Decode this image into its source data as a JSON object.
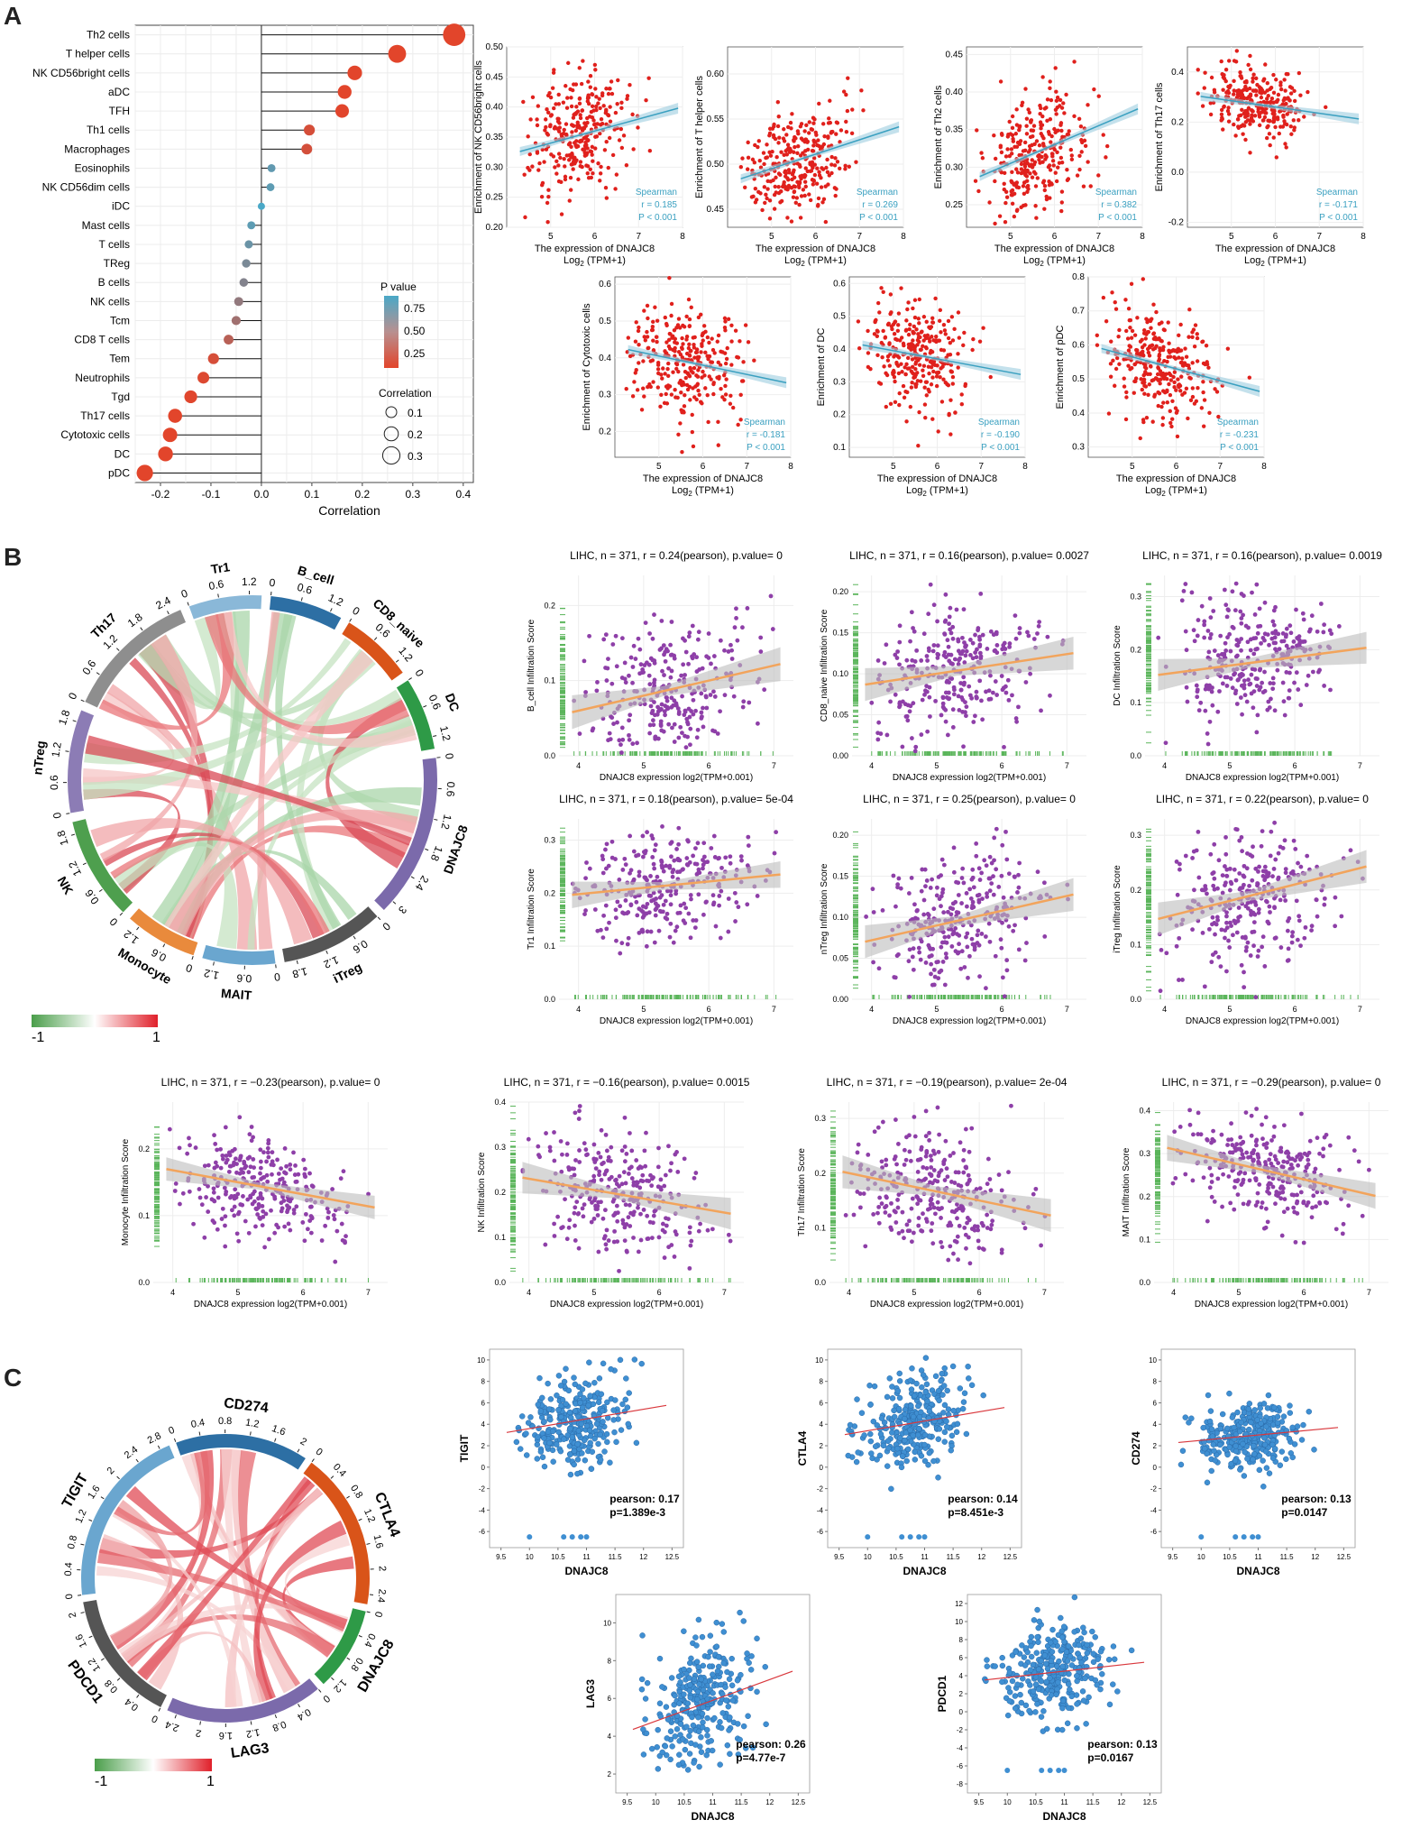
{
  "panels": {
    "A": "A",
    "B": "B",
    "C": "C"
  },
  "chart_data": [
    {
      "id": "lollipop",
      "type": "lollipop",
      "xlabel": "Correlation",
      "xlim": [
        -0.25,
        0.42
      ],
      "xticks": [
        -0.2,
        -0.1,
        0.0,
        0.1,
        0.2,
        0.3,
        0.4
      ],
      "xtick_labels": [
        "-0.2",
        "-0.1",
        "0.0",
        "0.1",
        "0.2",
        "0.3",
        "0.4"
      ],
      "categories": [
        "Th2 cells",
        "T helper cells",
        "NK CD56bright cells",
        "aDC",
        "TFH",
        "Th1 cells",
        "Macrophages",
        "Eosinophils",
        "NK CD56dim cells",
        "iDC",
        "Mast cells",
        "T cells",
        "TReg",
        "B cells",
        "NK cells",
        "Tcm",
        "CD8 T cells",
        "Tem",
        "Neutrophils",
        "Tgd",
        "Th17 cells",
        "Cytotoxic cells",
        "DC",
        "pDC"
      ],
      "values": [
        0.382,
        0.269,
        0.185,
        0.165,
        0.16,
        0.095,
        0.09,
        0.02,
        0.018,
        0.0,
        -0.02,
        -0.025,
        -0.03,
        -0.035,
        -0.045,
        -0.05,
        -0.065,
        -0.095,
        -0.115,
        -0.14,
        -0.171,
        -0.181,
        -0.19,
        -0.231
      ],
      "pvalues": [
        0.001,
        0.001,
        0.001,
        0.002,
        0.003,
        0.07,
        0.08,
        0.68,
        0.7,
        0.95,
        0.7,
        0.63,
        0.55,
        0.5,
        0.42,
        0.35,
        0.22,
        0.07,
        0.03,
        0.01,
        0.001,
        0.001,
        0.001,
        0.001
      ],
      "legend_p": {
        "title": "P value",
        "ticks": [
          "0.75",
          "0.50",
          "0.25"
        ]
      },
      "legend_size": {
        "title": "Correlation",
        "items": [
          "0.1",
          "0.2",
          "0.3"
        ]
      }
    },
    {
      "id": "enrich",
      "type": "scatter",
      "xlabel1": "The expression of DNAJC8",
      "xlabel2": "Log",
      "xlabel_sub": "2",
      "xlabel3": " (TPM+1)",
      "method": "Spearman",
      "plots": [
        {
          "ylabel": "Enrichment of NK CD56bright cells",
          "yticks": [
            "0.50",
            "0.45",
            "0.40",
            "0.35",
            "0.30",
            "0.25",
            "0.20"
          ],
          "ylim": [
            0.2,
            0.5
          ],
          "slope": 0.02,
          "intercept": 0.24,
          "spread": 0.05,
          "r": "r = 0.185",
          "p": "P < 0.001"
        },
        {
          "ylabel": "Enrichment of T helper cells",
          "yticks": [
            "0.60",
            "0.55",
            "0.50",
            "0.45"
          ],
          "ylim": [
            0.43,
            0.63
          ],
          "slope": 0.016,
          "intercept": 0.415,
          "spread": 0.03,
          "r": "r = 0.269",
          "p": "P < 0.001"
        },
        {
          "ylabel": "Enrichment of Th2 cells",
          "yticks": [
            "0.45",
            "0.40",
            "0.35",
            "0.30",
            "0.25"
          ],
          "ylim": [
            0.22,
            0.46
          ],
          "slope": 0.025,
          "intercept": 0.18,
          "spread": 0.04,
          "r": "r = 0.382",
          "p": "P < 0.001"
        },
        {
          "ylabel": "Enrichment of Th17 cells",
          "yticks": [
            "0.4",
            "0.2",
            "0.0",
            "-0.2"
          ],
          "ylim": [
            -0.22,
            0.5
          ],
          "slope": -0.025,
          "intercept": 0.41,
          "spread": 0.07,
          "r": "r = -0.171",
          "p": "P < 0.001"
        },
        {
          "ylabel": "Enrichment of Cytotoxic cells",
          "yticks": [
            "0.6",
            "0.5",
            "0.4",
            "0.3",
            "0.2"
          ],
          "ylim": [
            0.13,
            0.62
          ],
          "slope": -0.025,
          "intercept": 0.53,
          "spread": 0.08,
          "r": "r = -0.181",
          "p": "P < 0.001"
        },
        {
          "ylabel": "Enrichment of DC",
          "yticks": [
            "0.6",
            "0.5",
            "0.4",
            "0.3",
            "0.2",
            "0.1"
          ],
          "ylim": [
            0.07,
            0.62
          ],
          "slope": -0.025,
          "intercept": 0.52,
          "spread": 0.08,
          "r": "r = -0.190",
          "p": "P < 0.001"
        },
        {
          "ylabel": "Enrichment of pDC",
          "yticks": [
            "0.8",
            "0.7",
            "0.6",
            "0.5",
            "0.4",
            "0.3"
          ],
          "ylim": [
            0.27,
            0.8
          ],
          "slope": -0.035,
          "intercept": 0.74,
          "spread": 0.08,
          "r": "r = -0.231",
          "p": "P < 0.001"
        }
      ],
      "xticks": [
        "5",
        "6",
        "7",
        "8"
      ],
      "xlim": [
        4,
        8
      ]
    },
    {
      "id": "chordB",
      "type": "chord",
      "segments": [
        {
          "name": "Tr1",
          "color": "#8ab8d8",
          "ticks": [
            "0",
            "0.6",
            "1.2"
          ]
        },
        {
          "name": "B_cell",
          "color": "#2d6fa4",
          "ticks": [
            "0",
            "0.6",
            "1.2"
          ]
        },
        {
          "name": "CD8_naive",
          "color": "#d95419",
          "ticks": [
            "0",
            "0.6",
            "1.2"
          ]
        },
        {
          "name": "DC",
          "color": "#2e9a47",
          "ticks": [
            "0",
            "0.6",
            "1.2"
          ]
        },
        {
          "name": "DNAJC8",
          "color": "#7b6aab",
          "ticks": [
            "0",
            "0.6",
            "1.2",
            "1.8",
            "2.4",
            "3"
          ]
        },
        {
          "name": "iTreg",
          "color": "#555555",
          "ticks": [
            "0",
            "0.6",
            "1.2",
            "1.8"
          ]
        },
        {
          "name": "MAIT",
          "color": "#6aa6cf",
          "ticks": [
            "0",
            "0.6",
            "1.2"
          ]
        },
        {
          "name": "Monocyte",
          "color": "#e98a3c",
          "ticks": [
            "0",
            "0.6",
            "1.2"
          ]
        },
        {
          "name": "NK",
          "color": "#4e9f4e",
          "ticks": [
            "0",
            "0.6",
            "1.2",
            "1.8"
          ]
        },
        {
          "name": "nTreg",
          "color": "#8c7cb5",
          "ticks": [
            "0",
            "0.6",
            "1.2",
            "1.8"
          ]
        },
        {
          "name": "Th17",
          "color": "#8e8e8e",
          "ticks": [
            "0",
            "0.6",
            "1.2",
            "1.8",
            "2.4"
          ]
        }
      ],
      "colorbar": {
        "min": "-1",
        "max": "1"
      }
    },
    {
      "id": "timerB",
      "type": "scatter",
      "xlabel": "DNAJC8 expression log2(TPM+0.001)",
      "xticks": [
        "4",
        "5",
        "6",
        "7"
      ],
      "plots": [
        {
          "title": "LIHC, n = 371, r = 0.24(pearson), p.value= 0",
          "ylabel": "B_cell Infiltration Score",
          "yticks": [
            "0.2",
            "0.1",
            "0.0"
          ],
          "ymax": 0.24,
          "slope": 0.02,
          "intercept": -0.02,
          "spread": 0.045
        },
        {
          "title": "LIHC, n = 371, r = 0.16(pearson), p.value= 0.0027",
          "ylabel": "CD8_naive Infiltration Score",
          "yticks": [
            "0.20",
            "0.15",
            "0.10",
            "0.05",
            "0.00"
          ],
          "ymax": 0.22,
          "slope": 0.012,
          "intercept": 0.04,
          "spread": 0.04
        },
        {
          "title": "LIHC, n = 371, r = 0.16(pearson), p.value= 0.0019",
          "ylabel": "DC Infiltration Score",
          "yticks": [
            "0.3",
            "0.2",
            "0.1",
            "0.0"
          ],
          "ymax": 0.34,
          "slope": 0.016,
          "intercept": 0.09,
          "spread": 0.06
        },
        {
          "title": "LIHC, n = 371, r = 0.18(pearson), p.value= 5e-04",
          "ylabel": "Tr1 Infiltration Score",
          "yticks": [
            "0.3",
            "0.2",
            "0.1",
            "0.0"
          ],
          "ymax": 0.34,
          "slope": 0.012,
          "intercept": 0.15,
          "spread": 0.05
        },
        {
          "title": "LIHC, n = 371, r = 0.25(pearson), p.value= 0",
          "ylabel": "nTreg Infiltration Score",
          "yticks": [
            "0.20",
            "0.15",
            "0.10",
            "0.05",
            "0.00"
          ],
          "ymax": 0.22,
          "slope": 0.018,
          "intercept": 0.0,
          "spread": 0.04
        },
        {
          "title": "LIHC, n = 371, r = 0.22(pearson), p.value= 0",
          "ylabel": "iTreg Infiltration Score",
          "yticks": [
            "0.3",
            "0.2",
            "0.1",
            "0.0"
          ],
          "ymax": 0.33,
          "slope": 0.03,
          "intercept": 0.03,
          "spread": 0.06
        },
        {
          "title": "LIHC, n = 371, r = −0.23(pearson), p.value= 0",
          "ylabel": "Monocyte Infiltration Score",
          "yticks": [
            "0.2",
            "0.1",
            "0.0"
          ],
          "ymax": 0.27,
          "slope": -0.018,
          "intercept": 0.24,
          "spread": 0.035
        },
        {
          "title": "LIHC, n = 371, r = −0.16(pearson), p.value= 0.0015",
          "ylabel": "NK Infiltration Score",
          "yticks": [
            "0.4",
            "0.3",
            "0.2",
            "0.1",
            "0.0"
          ],
          "ymax": 0.4,
          "slope": -0.025,
          "intercept": 0.33,
          "spread": 0.07
        },
        {
          "title": "LIHC, n = 371, r = −0.19(pearson), p.value= 2e-04",
          "ylabel": "Th17 Infiltration Score",
          "yticks": [
            "0.3",
            "0.2",
            "0.1",
            "0.0"
          ],
          "ymax": 0.33,
          "slope": -0.025,
          "intercept": 0.3,
          "spread": 0.06
        },
        {
          "title": "LIHC, n = 371, r = −0.29(pearson), p.value= 0",
          "ylabel": "MAIT Infiltration Score",
          "yticks": [
            "0.4",
            "0.3",
            "0.2",
            "0.1",
            "0.0"
          ],
          "ymax": 0.42,
          "slope": -0.035,
          "intercept": 0.45,
          "spread": 0.06
        }
      ]
    },
    {
      "id": "chordC",
      "type": "chord",
      "segments": [
        {
          "name": "CD274",
          "color": "#2d6fa4",
          "ticks": [
            "0",
            "0.4",
            "0.8",
            "1.2",
            "1.6",
            "2"
          ]
        },
        {
          "name": "CTLA4",
          "color": "#d95419",
          "ticks": [
            "0",
            "0.4",
            "0.8",
            "1.2",
            "1.6",
            "2",
            "2.4"
          ]
        },
        {
          "name": "DNAJC8",
          "color": "#2e9a47",
          "ticks": [
            "0",
            "0.4",
            "0.8",
            "1.2"
          ]
        },
        {
          "name": "LAG3",
          "color": "#7b6aab",
          "ticks": [
            "0",
            "0.4",
            "0.8",
            "1.2",
            "1.6",
            "2",
            "2.4"
          ]
        },
        {
          "name": "PDCD1",
          "color": "#555555",
          "ticks": [
            "0",
            "0.4",
            "0.8",
            "1.2",
            "1.6",
            "2"
          ]
        },
        {
          "name": "TIGIT",
          "color": "#6aa6cf",
          "ticks": [
            "0",
            "0.4",
            "0.8",
            "1.2",
            "1.6",
            "2",
            "2.4",
            "2.8"
          ]
        }
      ],
      "colorbar": {
        "min": "-1",
        "max": "1"
      }
    },
    {
      "id": "checkC",
      "type": "scatter",
      "xlabel": "DNAJC8",
      "xticks": [
        "9.5",
        "10",
        "10.5",
        "11",
        "11.5",
        "12",
        "12.5"
      ],
      "xlim": [
        9.3,
        12.7
      ],
      "plots": [
        {
          "gene": "TIGIT",
          "pearson": "pearson: 0.17",
          "p": "p=1.389e-3",
          "yticks": [
            "10",
            "8",
            "6",
            "4",
            "2",
            "0",
            "-2",
            "-4",
            "-6"
          ],
          "ylim": [
            -7.5,
            11
          ],
          "slope": 0.9,
          "intercept": -5.4,
          "spread": 2.0
        },
        {
          "gene": "CTLA4",
          "pearson": "pearson: 0.14",
          "p": "p=8.451e-3",
          "yticks": [
            "10",
            "8",
            "6",
            "4",
            "2",
            "0",
            "-2",
            "-4",
            "-6"
          ],
          "ylim": [
            -7.5,
            11
          ],
          "slope": 0.9,
          "intercept": -5.6,
          "spread": 2.2
        },
        {
          "gene": "CD274",
          "pearson": "pearson: 0.13",
          "p": "p=0.0147",
          "yticks": [
            "10",
            "8",
            "6",
            "4",
            "2",
            "0",
            "-2",
            "-4",
            "-6"
          ],
          "ylim": [
            -7.5,
            11
          ],
          "slope": 0.5,
          "intercept": -2.5,
          "spread": 1.6
        },
        {
          "gene": "LAG3",
          "pearson": "pearson: 0.26",
          "p": "p=4.77e-7",
          "yticks": [
            "10",
            "8",
            "6",
            "4",
            "2"
          ],
          "ylim": [
            1,
            11.5
          ],
          "slope": 1.1,
          "intercept": -6.2,
          "spread": 1.6
        },
        {
          "gene": "PDCD1",
          "pearson": "pearson: 0.13",
          "p": "p=0.0167",
          "yticks": [
            "12",
            "10",
            "8",
            "6",
            "4",
            "2",
            "0",
            "-2",
            "-4",
            "-6",
            "-8"
          ],
          "ylim": [
            -9,
            13
          ],
          "slope": 0.7,
          "intercept": -3.2,
          "spread": 2.6
        }
      ]
    }
  ]
}
